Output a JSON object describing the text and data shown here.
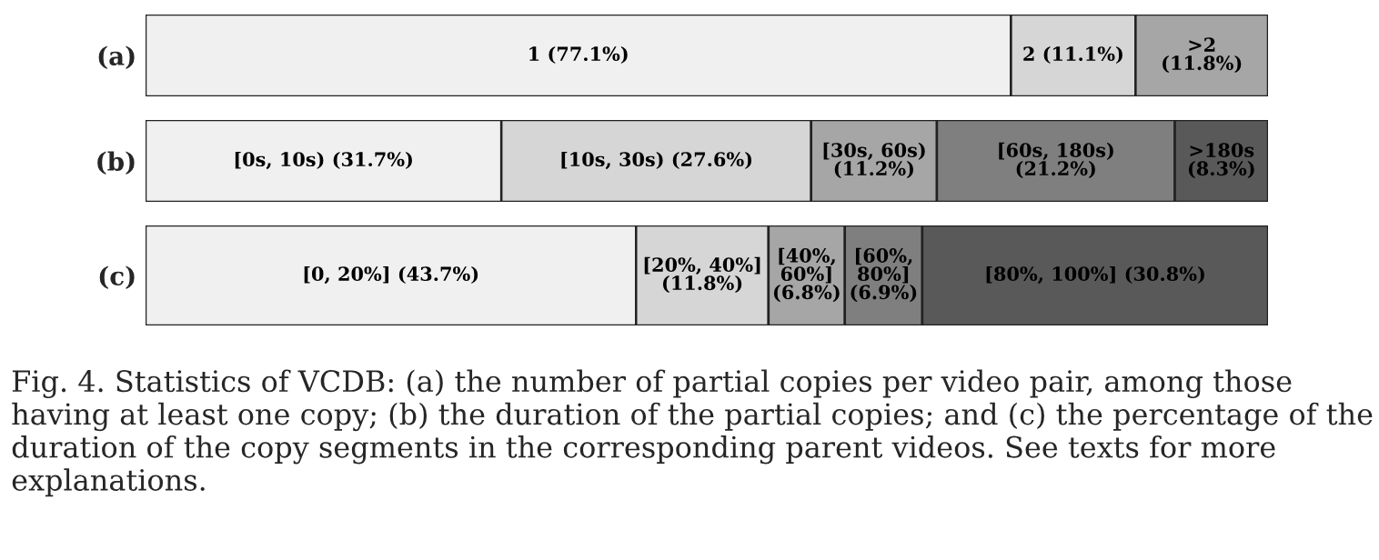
{
  "chart_data": [
    {
      "type": "bar",
      "orientation": "horizontal",
      "stacked": true,
      "categories": [
        "(a)"
      ],
      "series": [
        {
          "color": "#f0f0f0",
          "values": [
            77.1
          ],
          "value_labels": [
            "1 (77.1%)"
          ]
        },
        {
          "color": "#d6d6d6",
          "values": [
            11.1
          ],
          "value_labels": [
            "2 (11.1%)"
          ]
        },
        {
          "color": "#a6a6a6",
          "values": [
            11.8
          ],
          "value_labels": [
            ">2\n(11.8%)"
          ]
        }
      ]
    },
    {
      "type": "bar",
      "orientation": "horizontal",
      "stacked": true,
      "categories": [
        "(b)"
      ],
      "series": [
        {
          "color": "#f0f0f0",
          "values": [
            31.7
          ],
          "value_labels": [
            "[0s, 10s) (31.7%)"
          ]
        },
        {
          "color": "#d6d6d6",
          "values": [
            27.6
          ],
          "value_labels": [
            "[10s, 30s) (27.6%)"
          ]
        },
        {
          "color": "#a6a6a6",
          "values": [
            11.2
          ],
          "value_labels": [
            "[30s, 60s)\n(11.2%)"
          ]
        },
        {
          "color": "#7f7f7f",
          "values": [
            21.2
          ],
          "value_labels": [
            "[60s, 180s)\n(21.2%)"
          ]
        },
        {
          "color": "#595959",
          "values": [
            8.3
          ],
          "value_labels": [
            ">180s\n(8.3%)"
          ]
        }
      ]
    },
    {
      "type": "bar",
      "orientation": "horizontal",
      "stacked": true,
      "categories": [
        "(c)"
      ],
      "series": [
        {
          "color": "#f0f0f0",
          "values": [
            43.7
          ],
          "value_labels": [
            "[0, 20%] (43.7%)"
          ]
        },
        {
          "color": "#d6d6d6",
          "values": [
            11.8
          ],
          "value_labels": [
            "[20%, 40%]\n(11.8%)"
          ]
        },
        {
          "color": "#a6a6a6",
          "values": [
            6.8
          ],
          "value_labels": [
            "[40%,\n60%]\n(6.8%)"
          ]
        },
        {
          "color": "#7f7f7f",
          "values": [
            6.9
          ],
          "value_labels": [
            "[60%,\n80%]\n(6.9%)"
          ]
        },
        {
          "color": "#595959",
          "values": [
            30.8
          ],
          "value_labels": [
            "[80%, 100%] (30.8%)"
          ]
        }
      ],
      "annotations": [
        "Fig. 4. Statistics of VCDB: (a) the number of partial copies per video pair, among those having at least one copy; (b) the duration of the partial copies; and (c) the percentage of the duration of the copy segments in the corresponding parent videos. See texts for more explanations."
      ]
    }
  ]
}
